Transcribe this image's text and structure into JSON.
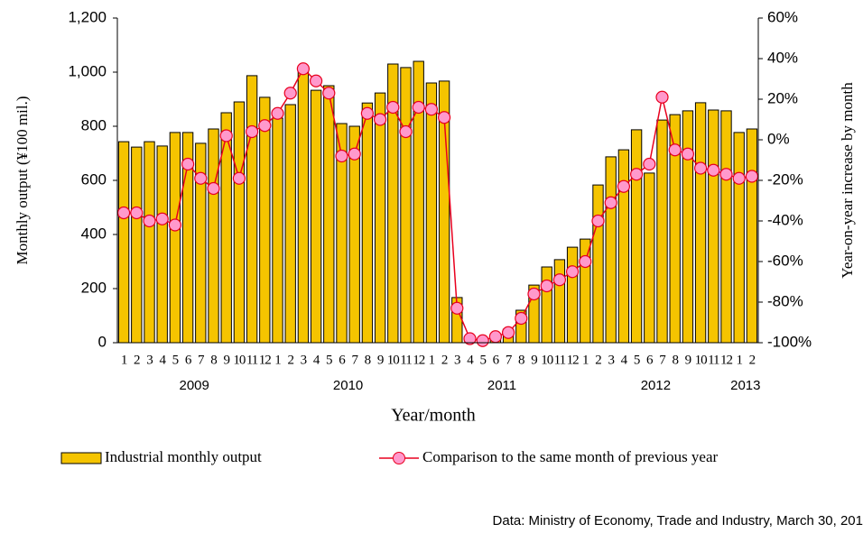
{
  "chart_data": {
    "type": "bar",
    "y_label": "Monthly output (¥100 mil.)",
    "y2_label": "Year-on-year increase by month",
    "x_label": "Year/month",
    "source": "Data: Ministry of Economy, Trade and Industry, March 30, 201",
    "categories": [
      "1",
      "2",
      "3",
      "4",
      "5",
      "6",
      "7",
      "8",
      "9",
      "10",
      "11",
      "12",
      "1",
      "2",
      "3",
      "4",
      "5",
      "6",
      "7",
      "8",
      "9",
      "10",
      "11",
      "12",
      "1",
      "2",
      "3",
      "4",
      "5",
      "6",
      "7",
      "8",
      "9",
      "10",
      "11",
      "12",
      "1",
      "2",
      "3",
      "4",
      "5",
      "6",
      "7",
      "8",
      "9",
      "10",
      "11",
      "12",
      "1",
      "2"
    ],
    "x_group_labels": [
      "2009",
      "2010",
      "2011",
      "2012",
      "2013"
    ],
    "series": [
      {
        "name": "Industrial monthly output",
        "type": "bar",
        "axis": "y",
        "color": "#f5c400",
        "values": [
          743,
          723,
          743,
          727,
          777,
          777,
          737,
          790,
          850,
          890,
          987,
          907,
          830,
          880,
          1010,
          933,
          950,
          810,
          800,
          886,
          923,
          1030,
          1017,
          1040,
          960,
          967,
          167,
          15,
          10,
          25,
          50,
          120,
          213,
          280,
          307,
          353,
          383,
          583,
          687,
          713,
          787,
          627,
          823,
          843,
          857,
          887,
          860,
          857,
          777,
          790
        ]
      },
      {
        "name": "Comparison to the same month of previous year",
        "type": "line",
        "axis": "y2",
        "color": "#e8001e",
        "marker_color": "#ff99cc",
        "values": [
          -36,
          -36,
          -40,
          -39,
          -42,
          -12,
          -19,
          -24,
          2,
          -19,
          4,
          7,
          13,
          23,
          35,
          29,
          23,
          -8,
          -7,
          13,
          10,
          16,
          4,
          16,
          15,
          11,
          -83,
          -98,
          -99,
          -97,
          -95,
          -88,
          -76,
          -72,
          -69,
          -65,
          -60,
          -40,
          -31,
          -23,
          -17,
          -12,
          21,
          -5,
          -7,
          -14,
          -15,
          -17,
          -19,
          -18
        ]
      }
    ],
    "ylim": [
      0,
      1200
    ],
    "yticks": [
      0,
      200,
      400,
      600,
      800,
      {
        "value": 1000,
        "label": "1,000"
      },
      {
        "value": 1200,
        "label": "1,200"
      }
    ],
    "y2lim": [
      -100,
      60
    ],
    "y2ticks": [
      {
        "value": -100,
        "label": "-100%"
      },
      {
        "value": -80,
        "label": "-80%"
      },
      {
        "value": -60,
        "label": "-60%"
      },
      {
        "value": -40,
        "label": "-40%"
      },
      {
        "value": -20,
        "label": "-20%"
      },
      {
        "value": 0,
        "label": "0%"
      },
      {
        "value": 20,
        "label": "20%"
      },
      {
        "value": 40,
        "label": "40%"
      },
      {
        "value": 60,
        "label": "60%"
      }
    ]
  }
}
